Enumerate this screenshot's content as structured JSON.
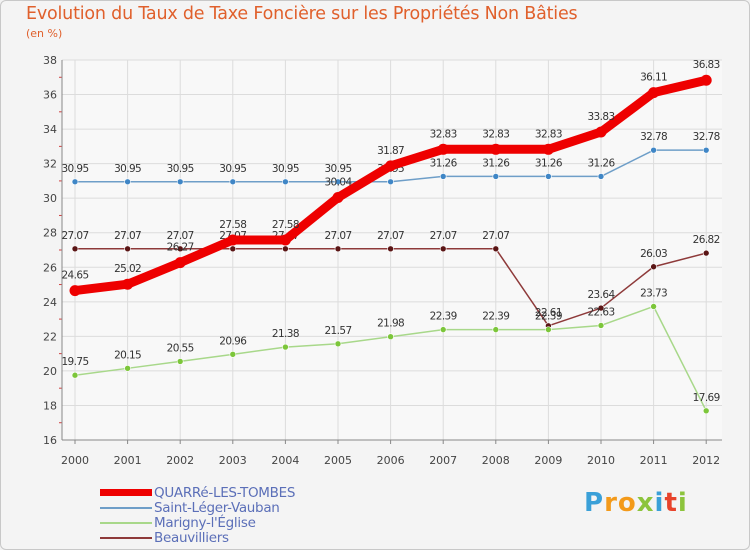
{
  "chart_data": {
    "type": "line",
    "title": "Evolution du Taux de Taxe Foncière sur les Propriétés Non Bâties",
    "ylabel": "(en %)",
    "categories": [
      "2000",
      "2001",
      "2002",
      "2003",
      "2004",
      "2005",
      "2006",
      "2007",
      "2008",
      "2009",
      "2010",
      "2011",
      "2012"
    ],
    "ylim": [
      16,
      38
    ],
    "yticks": [
      "16",
      "18",
      "20",
      "22",
      "24",
      "26",
      "28",
      "30",
      "32",
      "34",
      "36",
      "38"
    ],
    "series": [
      {
        "name": "Saint-Léger-Vauban",
        "color": "#6e9ec8",
        "marker": "#3f86c6",
        "values": [
          30.95,
          30.95,
          30.95,
          30.95,
          30.95,
          30.95,
          30.95,
          31.26,
          31.26,
          31.26,
          31.26,
          32.78,
          32.78
        ],
        "labels": [
          "30.95",
          "30.95",
          "30.95",
          "30.95",
          "30.95",
          "30.95",
          "30.95",
          "31.26",
          "31.26",
          "31.26",
          "31.26",
          "32.78",
          "32.78"
        ]
      },
      {
        "name": "Beauvilliers",
        "color": "#8e3a3a",
        "marker": "#5a1515",
        "values": [
          27.07,
          27.07,
          27.07,
          27.07,
          27.07,
          27.07,
          27.07,
          27.07,
          27.07,
          22.61,
          23.64,
          26.03,
          26.82
        ],
        "labels": [
          "27.07",
          "27.07",
          "27.07",
          "27.07",
          "27.07",
          "27.07",
          "27.07",
          "27.07",
          "27.07",
          "22.61",
          "23.64",
          "26.03",
          "26.82"
        ]
      },
      {
        "name": "Marigny-l'Église",
        "color": "#a8d88a",
        "marker": "#7cc63a",
        "values": [
          19.75,
          20.15,
          20.55,
          20.96,
          21.38,
          21.57,
          21.98,
          22.39,
          22.39,
          22.39,
          22.63,
          23.73,
          17.69
        ],
        "labels": [
          "19.75",
          "20.15",
          "20.55",
          "20.96",
          "21.38",
          "21.57",
          "21.98",
          "22.39",
          "22.39",
          "22.39",
          "22.63",
          "23.73",
          "17.69"
        ]
      },
      {
        "name": "QUARRé-LES-TOMBES",
        "color": "#ee0000",
        "marker": "#ee0000",
        "values": [
          24.65,
          25.02,
          26.27,
          27.58,
          27.58,
          30.04,
          31.87,
          32.83,
          32.83,
          32.83,
          33.83,
          36.11,
          36.83
        ],
        "labels": [
          "24.65",
          "25.02",
          "26.27",
          "27.58",
          "27.58",
          "30.04",
          "31.87",
          "32.83",
          "32.83",
          "32.83",
          "33.83",
          "36.11",
          "36.83"
        ]
      }
    ],
    "legend": [
      {
        "name": "QUARRé-LES-TOMBES",
        "color": "#ee0000",
        "thick": true
      },
      {
        "name": "Saint-Léger-Vauban",
        "color": "#6e9ec8",
        "thick": false
      },
      {
        "name": "Marigny-l'Église",
        "color": "#a8d88a",
        "thick": false
      },
      {
        "name": "Beauvilliers",
        "color": "#8e3a3a",
        "thick": false
      }
    ]
  },
  "logo": {
    "letters": [
      "P",
      "r",
      "o",
      "x",
      "i",
      "t",
      "i"
    ]
  }
}
